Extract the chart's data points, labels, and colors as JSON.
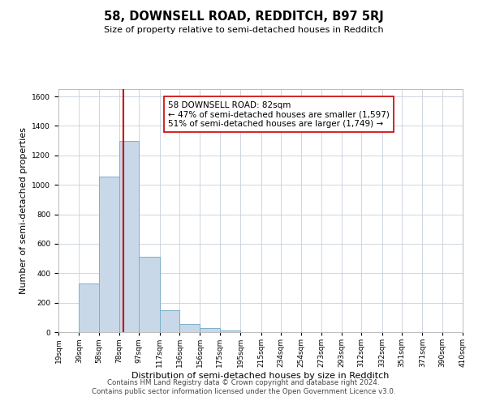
{
  "title": "58, DOWNSELL ROAD, REDDITCH, B97 5RJ",
  "subtitle": "Size of property relative to semi-detached houses in Redditch",
  "xlabel": "Distribution of semi-detached houses by size in Redditch",
  "ylabel": "Number of semi-detached properties",
  "bin_labels": [
    "19sqm",
    "39sqm",
    "58sqm",
    "78sqm",
    "97sqm",
    "117sqm",
    "136sqm",
    "156sqm",
    "175sqm",
    "195sqm",
    "215sqm",
    "234sqm",
    "254sqm",
    "273sqm",
    "293sqm",
    "312sqm",
    "332sqm",
    "351sqm",
    "371sqm",
    "390sqm",
    "410sqm"
  ],
  "bin_edges": [
    19,
    39,
    58,
    78,
    97,
    117,
    136,
    156,
    175,
    195,
    215,
    234,
    254,
    273,
    293,
    312,
    332,
    351,
    371,
    390,
    410
  ],
  "bar_heights": [
    0,
    330,
    1055,
    1300,
    510,
    150,
    55,
    25,
    10,
    0,
    0,
    0,
    0,
    0,
    0,
    0,
    0,
    0,
    0,
    0
  ],
  "bar_color": "#c8d8e8",
  "bar_edgecolor": "#7ab0cc",
  "property_line_x": 82,
  "property_line_color": "#cc0000",
  "annotation_line1": "58 DOWNSELL ROAD: 82sqm",
  "annotation_line2": "← 47% of semi-detached houses are smaller (1,597)",
  "annotation_line3": "51% of semi-detached houses are larger (1,749) →",
  "annotation_box_color": "#ffffff",
  "annotation_box_edgecolor": "#cc0000",
  "ylim": [
    0,
    1650
  ],
  "yticks": [
    0,
    200,
    400,
    600,
    800,
    1000,
    1200,
    1400,
    1600
  ],
  "footer_line1": "Contains HM Land Registry data © Crown copyright and database right 2024.",
  "footer_line2": "Contains public sector information licensed under the Open Government Licence v3.0.",
  "background_color": "#ffffff",
  "grid_color": "#c8d0dc",
  "title_fontsize": 10.5,
  "subtitle_fontsize": 8,
  "tick_fontsize": 6.5,
  "label_fontsize": 8,
  "annotation_fontsize": 7.5
}
